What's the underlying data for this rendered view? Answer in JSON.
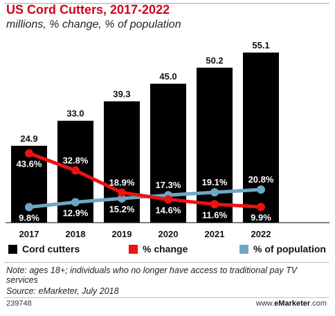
{
  "header": {
    "title": "US Cord Cutters, 2017-2022",
    "subtitle": "millions, % change, % of population"
  },
  "chart_data": {
    "type": "bar",
    "categories": [
      "2017",
      "2018",
      "2019",
      "2020",
      "2021",
      "2022"
    ],
    "ylim": [
      0,
      55.1
    ],
    "series": [
      {
        "name": "Cord cutters",
        "type": "bar",
        "color": "#000000",
        "values": [
          24.9,
          33.0,
          39.3,
          45.0,
          50.2,
          55.1
        ],
        "labels": [
          "24.9",
          "33.0",
          "39.3",
          "45.0",
          "50.2",
          "55.1"
        ]
      },
      {
        "name": "% change",
        "type": "line",
        "color": "#ee1111",
        "values": [
          43.6,
          32.8,
          18.9,
          14.6,
          11.6,
          9.9
        ],
        "labels": [
          "43.6%",
          "32.8%",
          "18.9%",
          "14.6%",
          "11.6%",
          "9.9%"
        ]
      },
      {
        "name": "% of population",
        "type": "line",
        "color": "#6fa6c4",
        "values": [
          9.8,
          12.9,
          15.2,
          17.3,
          19.1,
          20.8
        ],
        "labels": [
          "9.8%",
          "12.9%",
          "15.2%",
          "17.3%",
          "19.1%",
          "20.8%"
        ]
      }
    ]
  },
  "legend": {
    "items": [
      "Cord cutters",
      "% change",
      "% of population"
    ],
    "colors": [
      "#000000",
      "#ee1111",
      "#6fa6c4"
    ]
  },
  "footer": {
    "note": "Note: ages 18+; individuals who no longer have access to traditional pay TV services",
    "source": "Source: eMarketer, July 2018",
    "chart_id": "239748",
    "brand_prefix": "www.",
    "brand_name": "eMarketer",
    "brand_suffix": ".com"
  }
}
